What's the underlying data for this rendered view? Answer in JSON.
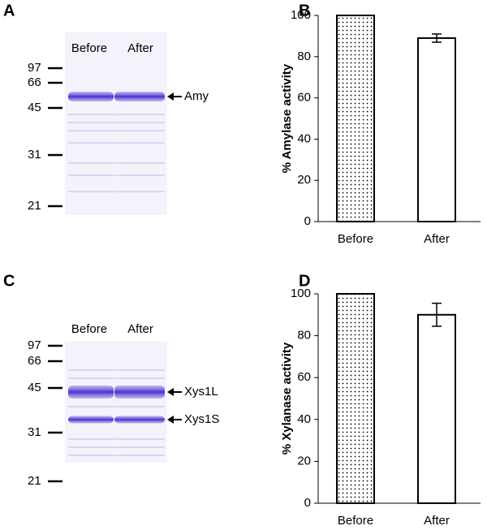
{
  "panel_labels": [
    "A",
    "B",
    "C",
    "D"
  ],
  "gels": [
    {
      "lanes": [
        "Before",
        "After"
      ],
      "markers": [
        "97",
        "66",
        "45",
        "31",
        "21"
      ],
      "bands": [
        "Amy"
      ]
    },
    {
      "lanes": [
        "Before",
        "After"
      ],
      "markers": [
        "97",
        "66",
        "45",
        "31",
        "21"
      ],
      "bands": [
        "Xys1L",
        "Xys1S"
      ]
    }
  ],
  "chart_data": [
    {
      "type": "bar",
      "y_label": "% Amylase activity",
      "categories": [
        "Before",
        "After"
      ],
      "values": [
        100,
        89
      ],
      "errors": [
        null,
        2
      ],
      "fills": [
        "dots",
        "#ffffff"
      ],
      "ylim": [
        0,
        100
      ],
      "yticks": [
        0,
        20,
        40,
        60,
        80,
        100
      ]
    },
    {
      "type": "bar",
      "y_label": "% Xylanase activity",
      "categories": [
        "Before",
        "After"
      ],
      "values": [
        100,
        90
      ],
      "errors": [
        null,
        5.5
      ],
      "fills": [
        "dots",
        "#ffffff"
      ],
      "ylim": [
        0,
        100
      ],
      "yticks": [
        0,
        20,
        40,
        60,
        80,
        100
      ]
    }
  ]
}
